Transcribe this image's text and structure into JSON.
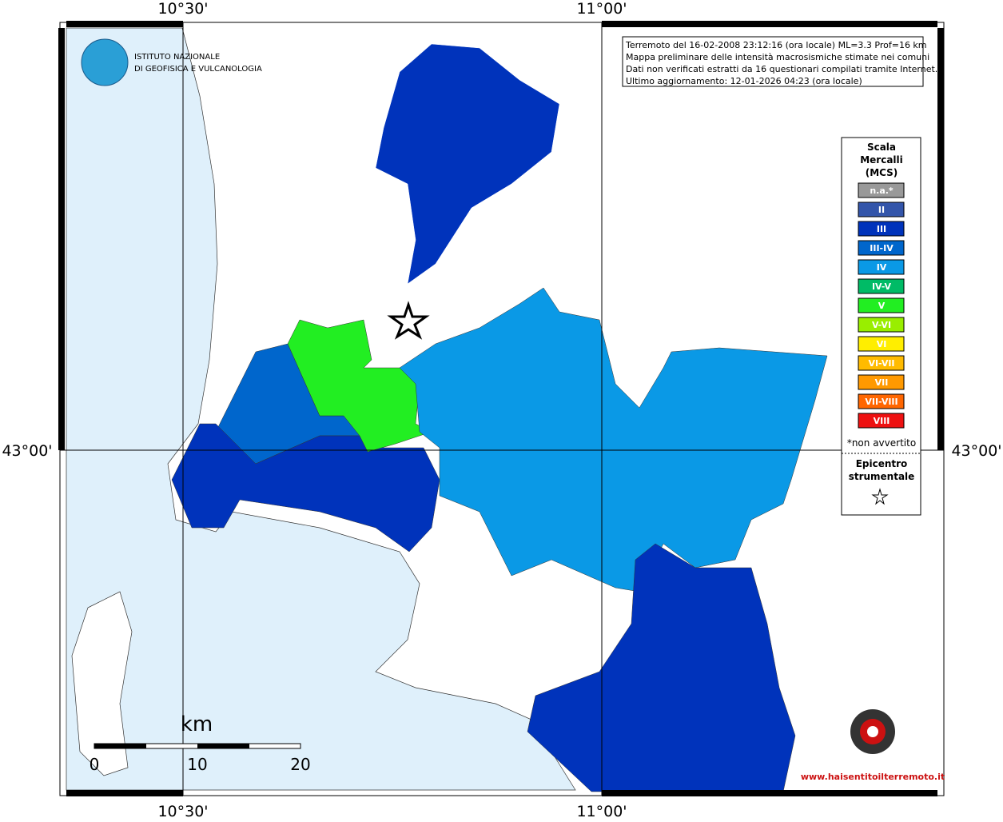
{
  "header": {
    "institute_line1": "ISTITUTO NAZIONALE",
    "institute_line2": "DI GEOFISICA E VULCANOLOGIA"
  },
  "axes": {
    "lon_left": "10°30'",
    "lon_right": "11°00'",
    "lat": "43°00'"
  },
  "info_box": [
    "Terremoto del 16-02-2008 23:12:16 (ora locale) ML=3.3 Prof=16 km",
    "Mappa preliminare delle intensità macrosismiche stimate nei comuni",
    "Dati non verificati estratti da 16 questionari compilati tramite Internet.",
    "Ultimo aggiornamento: 12-01-2026 04:23 (ora locale)"
  ],
  "legend": {
    "title": [
      "Scala",
      "Mercalli",
      "(MCS)"
    ],
    "items": [
      {
        "label": "n.a.*",
        "color": "#999999"
      },
      {
        "label": "II",
        "color": "#3355aa"
      },
      {
        "label": "III",
        "color": "#0033bb"
      },
      {
        "label": "III-IV",
        "color": "#0066cc"
      },
      {
        "label": "IV",
        "color": "#0a99e6"
      },
      {
        "label": "IV-V",
        "color": "#00bb66"
      },
      {
        "label": "V",
        "color": "#22ee22"
      },
      {
        "label": "V-VI",
        "color": "#99ee00"
      },
      {
        "label": "VI",
        "color": "#ffee00"
      },
      {
        "label": "VI-VII",
        "color": "#ffbb00"
      },
      {
        "label": "VII",
        "color": "#ff9900"
      },
      {
        "label": "VII-VIII",
        "color": "#ff6600"
      },
      {
        "label": "VIII",
        "color": "#ee1111"
      }
    ],
    "note": "*non avvertito",
    "epicenter": [
      "Epicentro",
      "strumentale"
    ]
  },
  "scale_bar": {
    "unit": "km",
    "labels": [
      "0",
      "10",
      "20"
    ]
  },
  "footer_logo": "www.haisentitoilterremoto.it"
}
